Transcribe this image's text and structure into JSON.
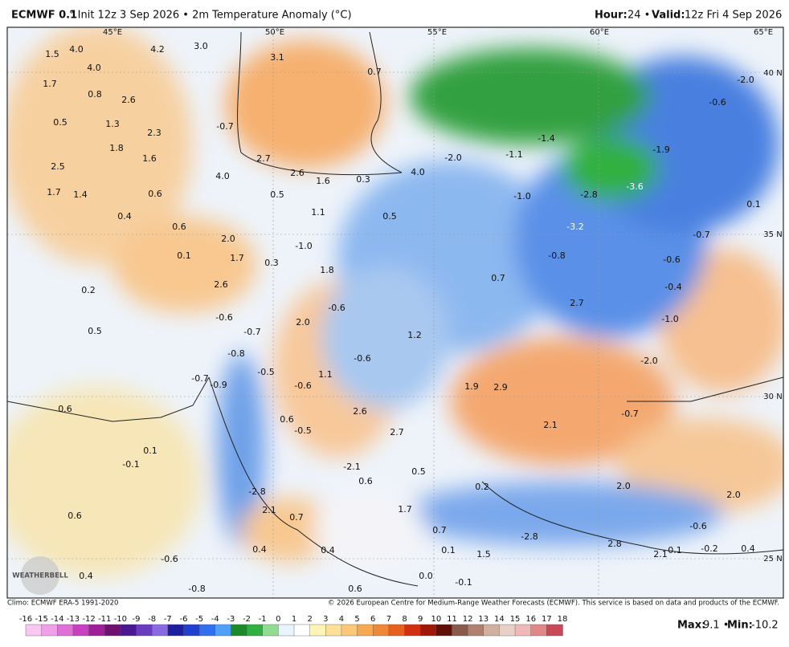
{
  "header": {
    "model": "ECMWF 0.1",
    "title": "° Init 12z 3 Sep 2026 • 2m Temperature Anomaly (°C)",
    "hour_label": "Hour:",
    "hour": "24 •",
    "valid_label": "Valid:",
    "valid": "12z Fri 4 Sep 2026"
  },
  "grid_labels": [
    "45°E",
    "50°E",
    "55°E",
    "60°E",
    "65°E",
    "40 N",
    "35 N",
    "30 N",
    "25 N"
  ],
  "map_labels": [
    "1.5",
    "4.0",
    "4.0",
    "4.2",
    "3.0",
    "3.1",
    "0.7",
    "-2.0",
    "-0.6",
    "1.7",
    "0.8",
    "2.6",
    "0.5",
    "1.3",
    "-0.7",
    "1.8",
    "2.3",
    "1.6",
    "-1.4",
    "-1.9",
    "-1.1",
    "-2.0",
    "2.7",
    "2.5",
    "2.6",
    "4.0",
    "1.6",
    "0.3",
    "4.0",
    "1.7",
    "1.4",
    "0.6",
    "0.5",
    "-1.0",
    "-2.8",
    "-3.6",
    "1.1",
    "0.5",
    "0.4",
    "0.6",
    "-3.2",
    "0.1",
    "2.0",
    "-1.0",
    "0.1",
    "1.7",
    "0.3",
    "-0.7",
    "1.8",
    "-0.8",
    "-0.6",
    "0.7",
    "-0.4",
    "2.6",
    "0.2",
    "2.7",
    "-0.6",
    "-0.6",
    "2.0",
    "-1.0",
    "0.5",
    "-0.7",
    "1.2",
    "-0.8",
    "-0.6",
    "-2.0",
    "-0.5",
    "1.1",
    "-0.7",
    "-0.9",
    "-0.6",
    "1.9",
    "2.9",
    "0.6",
    "2.6",
    "-0.7",
    "0.6",
    "2.1",
    "-0.5",
    "2.7",
    "0.1",
    "-0.1",
    "-2.1",
    "0.5",
    "0.6",
    "2.0",
    "0.2",
    "-2.8",
    "2.0",
    "2.1",
    "1.7",
    "0.7",
    "0.6",
    "0.7",
    "-2.8",
    "-0.6",
    "0.4",
    "0.4",
    "0.1",
    "1.5",
    "2.8",
    "2.1",
    "0.1",
    "-0.2",
    "0.4",
    "-0.6",
    "0.4",
    "0.0",
    "-0.1",
    "-0.8",
    "0.6"
  ],
  "logo": "WEATHERBELL",
  "footer": {
    "climo": "Climo: ECMWF ERA-5 1991-2020",
    "copyright": "© 2026 European Centre for Medium-Range Weather Forecasts (ECMWF). This service is based on data and products of the ECMWF.",
    "max_label": "Max:",
    "max": "9.1 •",
    "min_label": "Min:",
    "min": "-10.2"
  },
  "colorbar": {
    "ticks": [
      -16,
      -15,
      -14,
      -13,
      -12,
      -11,
      -10,
      -9,
      -8,
      -7,
      -6,
      -5,
      -4,
      -3,
      -2,
      -1,
      0,
      1,
      2,
      3,
      4,
      5,
      6,
      7,
      8,
      9,
      10,
      11,
      12,
      13,
      14,
      15,
      16,
      17,
      18
    ],
    "colors": [
      "#f8c8f0",
      "#f0a0e8",
      "#e070d8",
      "#c840c0",
      "#a01e98",
      "#701070",
      "#4a1890",
      "#6a3cc0",
      "#8a6ae0",
      "#1c20a0",
      "#2040d0",
      "#3070f0",
      "#50a0f8",
      "#1a8a2a",
      "#30b040",
      "#90dc90",
      "#e8f4ff",
      "#ffffff",
      "#fff4b8",
      "#fde098",
      "#fcc878",
      "#f8a850",
      "#f08838",
      "#e86020",
      "#d03010",
      "#a01808",
      "#601008",
      "#8a5a4a",
      "#b08070",
      "#d0b0a0",
      "#e8d0c8",
      "#f0b8b8",
      "#e08888",
      "#c84858"
    ]
  }
}
